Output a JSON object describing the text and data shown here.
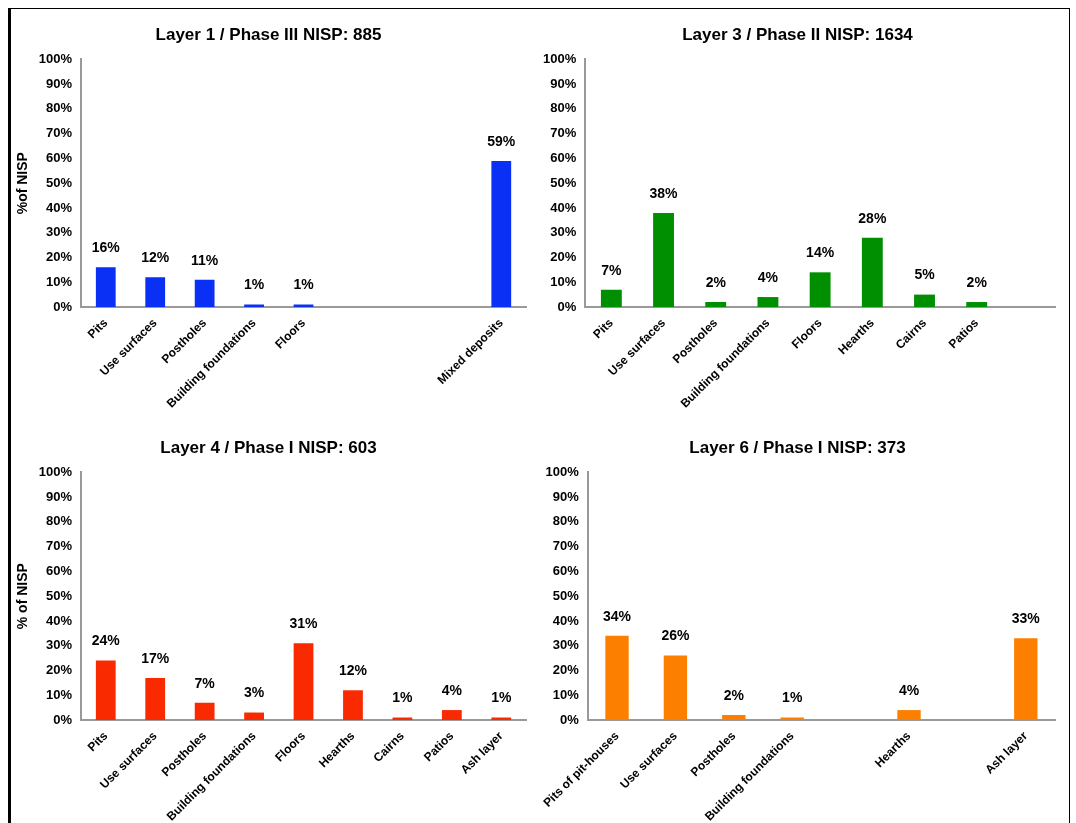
{
  "chart_data": [
    {
      "type": "bar",
      "title": "Layer 1 / Phase III NISP: 885",
      "ylabel": "%of NISP",
      "categories": [
        "Pits",
        "Use surfaces",
        "Postholes",
        "Building foundations",
        "Floors",
        null,
        null,
        null,
        "Mixed deposits"
      ],
      "values": [
        16,
        12,
        11,
        1,
        1,
        null,
        null,
        null,
        59
      ],
      "value_labels": [
        "16%",
        "12%",
        "11%",
        "1%",
        "1%",
        null,
        null,
        null,
        "59%"
      ],
      "color": "#0a2ff5",
      "ylim": [
        0,
        100
      ],
      "yticks": [
        {
          "value": 0,
          "label": "0%"
        },
        {
          "value": 10,
          "label": "10%"
        },
        {
          "value": 20,
          "label": "20%"
        },
        {
          "value": 30,
          "label": "30%"
        },
        {
          "value": 40,
          "label": "40%"
        },
        {
          "value": 50,
          "label": "50%"
        },
        {
          "value": 60,
          "label": "60%"
        },
        {
          "value": 70,
          "label": "70%"
        },
        {
          "value": 80,
          "label": "80%"
        },
        {
          "value": 90,
          "label": "90%"
        },
        {
          "value": 100,
          "label": "100%"
        }
      ],
      "grid": false,
      "legend": false
    },
    {
      "type": "bar",
      "title": "Layer 3 / Phase II NISP: 1634",
      "categories": [
        "Pits",
        "Use surfaces",
        "Postholes",
        "Building foundations",
        "Floors",
        "Hearths",
        "Cairns",
        "Patios",
        null
      ],
      "values": [
        7,
        38,
        2,
        4,
        14,
        28,
        5,
        2,
        null
      ],
      "value_labels": [
        "7%",
        "38%",
        "2%",
        "4%",
        "14%",
        "28%",
        "5%",
        "2%",
        null
      ],
      "color": "#008f00",
      "ylim": [
        0,
        100
      ],
      "yticks": [
        {
          "value": 0,
          "label": "0%"
        },
        {
          "value": 10,
          "label": "10%"
        },
        {
          "value": 20,
          "label": "20%"
        },
        {
          "value": 30,
          "label": "30%"
        },
        {
          "value": 40,
          "label": "40%"
        },
        {
          "value": 50,
          "label": "50%"
        },
        {
          "value": 60,
          "label": "60%"
        },
        {
          "value": 70,
          "label": "70%"
        },
        {
          "value": 80,
          "label": "80%"
        },
        {
          "value": 90,
          "label": "90%"
        },
        {
          "value": 100,
          "label": "100%"
        }
      ],
      "grid": false,
      "legend": false
    },
    {
      "type": "bar",
      "title": "Layer 4 / Phase I NISP: 603",
      "ylabel": "% of NISP",
      "categories": [
        "Pits",
        "Use surfaces",
        "Postholes",
        "Building foundations",
        "Floors",
        "Hearths",
        "Cairns",
        "Patios",
        "Ash layer"
      ],
      "values": [
        24,
        17,
        7,
        3,
        31,
        12,
        1,
        4,
        1
      ],
      "value_labels": [
        "24%",
        "17%",
        "7%",
        "3%",
        "31%",
        "12%",
        "1%",
        "4%",
        "1%"
      ],
      "color": "#fa2a00",
      "ylim": [
        0,
        100
      ],
      "yticks": [
        {
          "value": 0,
          "label": "0%"
        },
        {
          "value": 10,
          "label": "10%"
        },
        {
          "value": 20,
          "label": "20%"
        },
        {
          "value": 30,
          "label": "30%"
        },
        {
          "value": 40,
          "label": "40%"
        },
        {
          "value": 50,
          "label": "50%"
        },
        {
          "value": 60,
          "label": "60%"
        },
        {
          "value": 70,
          "label": "70%"
        },
        {
          "value": 80,
          "label": "80%"
        },
        {
          "value": 90,
          "label": "90%"
        },
        {
          "value": 100,
          "label": "100%"
        }
      ],
      "grid": false,
      "legend": false
    },
    {
      "type": "bar",
      "title": "Layer 6 / Phase I NISP: 373",
      "categories": [
        "Pits of pit-houses",
        "Use surfaces",
        "Postholes",
        "Building foundations",
        null,
        "Hearths",
        null,
        "Ash layer"
      ],
      "values": [
        34,
        26,
        2,
        1,
        null,
        4,
        null,
        33
      ],
      "value_labels": [
        "34%",
        "26%",
        "2%",
        "1%",
        null,
        "4%",
        null,
        "33%"
      ],
      "color": "#fd7f00",
      "ylim": [
        0,
        100
      ],
      "yticks": [
        {
          "value": 0,
          "label": "0%"
        },
        {
          "value": 10,
          "label": "10%"
        },
        {
          "value": 20,
          "label": "20%"
        },
        {
          "value": 30,
          "label": "30%"
        },
        {
          "value": 40,
          "label": "40%"
        },
        {
          "value": 50,
          "label": "50%"
        },
        {
          "value": 60,
          "label": "60%"
        },
        {
          "value": 70,
          "label": "70%"
        },
        {
          "value": 80,
          "label": "80%"
        },
        {
          "value": 90,
          "label": "90%"
        },
        {
          "value": 100,
          "label": "100%"
        }
      ],
      "grid": false,
      "legend": false
    }
  ]
}
